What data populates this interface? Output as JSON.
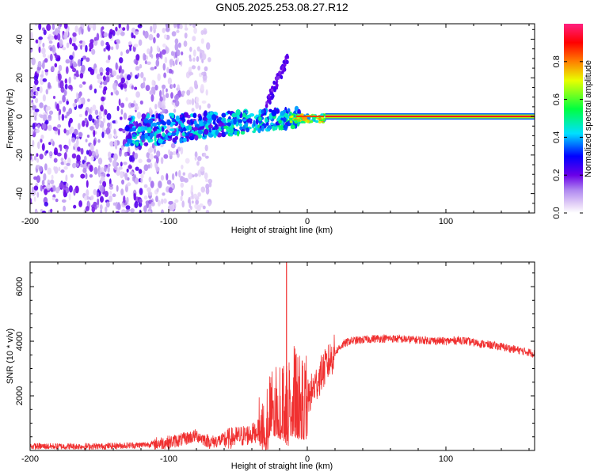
{
  "title": "GN05.2025.253.08.27.R12",
  "chart_data": [
    {
      "type": "heatmap",
      "xlabel": "Height of straight line (km)",
      "ylabel": "Frequency (Hz)",
      "xlim": [
        -200,
        164
      ],
      "ylim": [
        -50,
        48
      ],
      "xticks": [
        -200,
        -100,
        0,
        100
      ],
      "xtick_labels": [
        "-200",
        "-100",
        "0",
        "100"
      ],
      "yticks": [
        -40,
        -20,
        0,
        20,
        40
      ],
      "ytick_labels": [
        "-40",
        "-20",
        "0",
        "20",
        "40"
      ],
      "colorbar": {
        "label": "Normalized spectral amplitude",
        "range": [
          0,
          1
        ],
        "ticks": [
          0.0,
          0.2,
          0.4,
          0.6,
          0.8
        ],
        "tick_labels": [
          "0.0",
          "0.2",
          "0.4",
          "0.6",
          "0.8"
        ]
      },
      "features": [
        {
          "name": "noise_scatter",
          "x_range": [
            -200,
            -70
          ],
          "freq_range": [
            -50,
            48
          ],
          "amplitude": 0.1
        },
        {
          "name": "signal_ridge_low",
          "x_range": [
            -130,
            -10
          ],
          "freq_center": -5,
          "amplitude": 0.35
        },
        {
          "name": "signal_ridge_high",
          "x_range": [
            -10,
            10
          ],
          "freq_center": 0,
          "amplitude": 0.9
        },
        {
          "name": "carrier_line",
          "x_range": [
            13,
            164
          ],
          "freq_center": 0,
          "amplitude": 0.95
        }
      ]
    },
    {
      "type": "line",
      "xlabel": "Height of straight line (km)",
      "ylabel": "SNR (10 * v/v)",
      "xlim": [
        -200,
        164
      ],
      "ylim": [
        0,
        6900
      ],
      "xticks": [
        -200,
        -100,
        0,
        100
      ],
      "xtick_labels": [
        "-200",
        "-100",
        "0",
        "100"
      ],
      "yticks": [
        2000,
        4000,
        6000
      ],
      "ytick_labels": [
        "2000",
        "4000",
        "6000"
      ],
      "color": "#f03030",
      "series": [
        {
          "name": "SNR",
          "x": [
            -200,
            -150,
            -120,
            -100,
            -90,
            -80,
            -70,
            -60,
            -50,
            -40,
            -30,
            -25,
            -20,
            -15,
            -10,
            -5,
            0,
            5,
            10,
            15,
            20,
            25,
            30,
            40,
            50,
            60,
            80,
            100,
            110,
            120,
            140,
            164
          ],
          "y": [
            150,
            150,
            200,
            300,
            400,
            550,
            300,
            400,
            500,
            600,
            900,
            1500,
            2000,
            1500,
            2500,
            1800,
            1900,
            2300,
            2800,
            3200,
            3600,
            3850,
            4000,
            4050,
            4100,
            4100,
            4050,
            4000,
            4050,
            3950,
            3800,
            3550
          ]
        }
      ],
      "annotations": [
        {
          "text": "spike",
          "x": -15,
          "y": 6900
        }
      ]
    }
  ]
}
